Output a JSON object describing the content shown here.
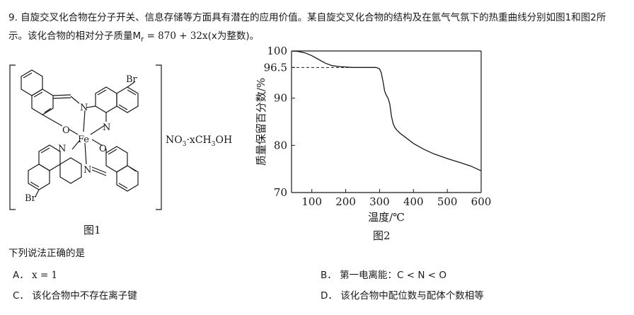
{
  "question": {
    "line1": "9. 自旋交叉化合物在分子开关、信息存储等方面具有潜在的应用价值。某自旋交叉化合物的结构及在氩气气氛下的热重曲线分别如图1和图2所",
    "line2_prefix": "示。该化合物的相对分子质量M",
    "line2_sub": "r",
    "line2_formula": " = 870 + 32x",
    "line2_suffix": "(x为整数)。"
  },
  "figure1": {
    "caption": "图1",
    "counter_ion": "NO",
    "counter_ion_sub": "3",
    "solvent": "·xCH",
    "solvent_sub": "3",
    "solvent_end": "OH",
    "atoms": {
      "br_top": "Br",
      "br_bottom": "Br",
      "fe": "Fe",
      "n_imine_top": "N",
      "n_quin_top": "N",
      "o_top": "O",
      "n_quin_bottom": "N",
      "n_imine_bottom": "N",
      "o_bottom": "O"
    }
  },
  "figure2": {
    "caption": "图2",
    "chart_data": {
      "type": "line",
      "title": "",
      "xlabel": "温度/℃",
      "ylabel": "质量保留百分数/%",
      "xlim": [
        40,
        600
      ],
      "ylim": [
        70,
        100
      ],
      "x_ticks": [
        100,
        200,
        300,
        400,
        500,
        600
      ],
      "y_ticks": [
        70,
        80,
        90,
        100
      ],
      "y_ticks_extra": [
        96.5
      ],
      "reference_line": {
        "y": 96.5,
        "style": "dashed"
      },
      "series": [
        {
          "x": [
            40,
            60,
            80,
            100,
            120,
            140,
            160,
            180,
            200,
            220,
            240,
            260,
            280,
            290,
            300,
            305,
            310,
            315,
            320,
            325,
            330,
            335,
            340,
            345,
            350,
            360,
            380,
            400,
            430,
            460,
            500,
            540,
            570,
            600
          ],
          "y": [
            100,
            99.9,
            99.6,
            99.0,
            98.2,
            97.4,
            96.9,
            96.7,
            96.6,
            96.5,
            96.5,
            96.5,
            96.5,
            96.5,
            96.2,
            95.4,
            93.6,
            91.5,
            90.6,
            90.0,
            88.8,
            86.2,
            84.6,
            83.8,
            83.3,
            82.6,
            81.5,
            80.4,
            79.2,
            78.2,
            77.2,
            76.3,
            75.6,
            74.6
          ]
        }
      ]
    }
  },
  "prompt": "下列说法正确的是",
  "options": [
    {
      "label": "A．",
      "text": "x = 1"
    },
    {
      "label": "B．",
      "text": "第一电离能：C < N < O"
    },
    {
      "label": "C．",
      "text": "该化合物中不存在离子键"
    },
    {
      "label": "D．",
      "text": "该化合物中配位数与配体个数相等"
    }
  ]
}
